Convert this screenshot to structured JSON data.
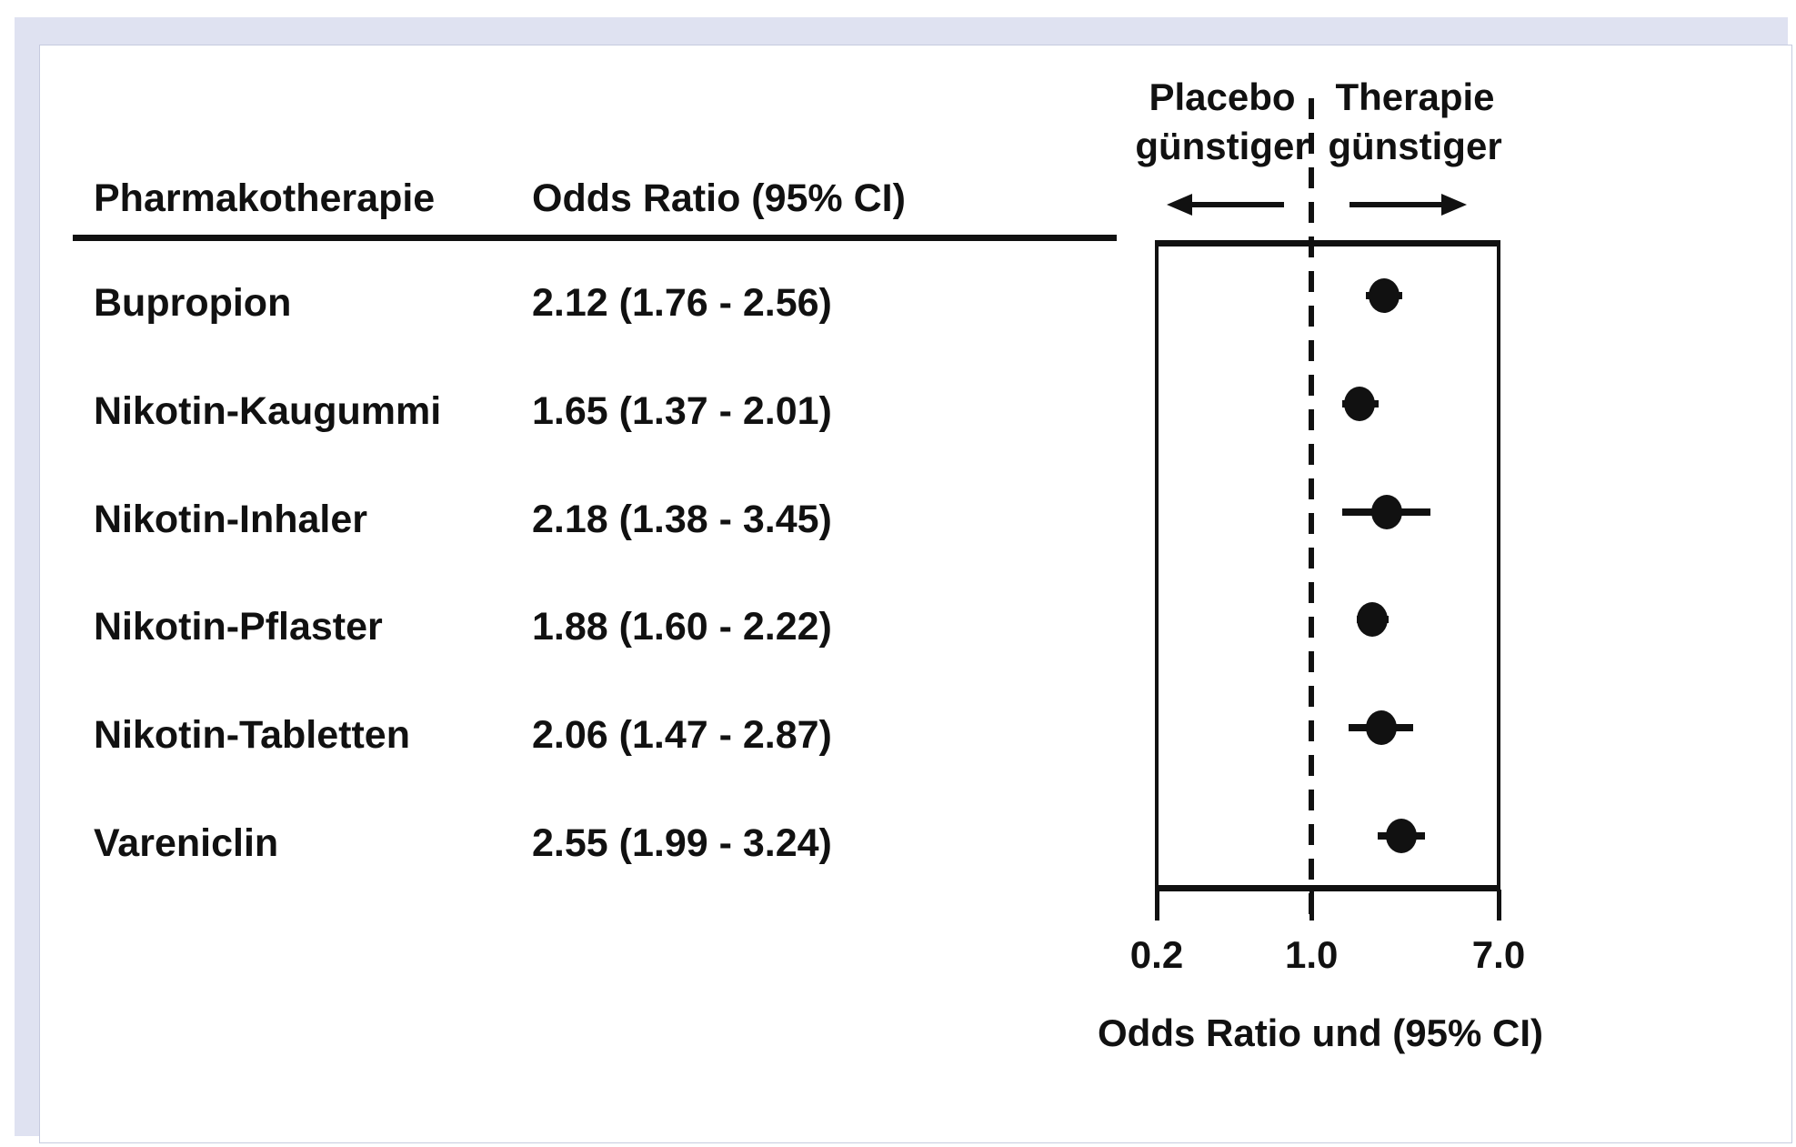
{
  "table": {
    "col1_header": "Pharmakotherapie",
    "col2_header": "Odds Ratio (95% CI)"
  },
  "plot": {
    "left_label": [
      "Placebo",
      "günstiger"
    ],
    "right_label": [
      "Therapie",
      "günstiger"
    ],
    "axis_label": "Odds Ratio und (95% CI)"
  },
  "chart_data": {
    "type": "scatter",
    "subtype": "forest-plot",
    "rows": [
      {
        "name": "Bupropion",
        "label": "2.12 (1.76 - 2.56)",
        "or": 2.12,
        "ci_low": 1.76,
        "ci_high": 2.56
      },
      {
        "name": "Nikotin-Kaugummi",
        "label": "1.65 (1.37 - 2.01)",
        "or": 1.65,
        "ci_low": 1.37,
        "ci_high": 2.01
      },
      {
        "name": "Nikotin-Inhaler",
        "label": "2.18 (1.38 - 3.45)",
        "or": 2.18,
        "ci_low": 1.38,
        "ci_high": 3.45
      },
      {
        "name": "Nikotin-Pflaster",
        "label": "1.88 (1.60 - 2.22)",
        "or": 1.88,
        "ci_low": 1.6,
        "ci_high": 2.22
      },
      {
        "name": "Nikotin-Tabletten",
        "label": "2.06 (1.47 - 2.87)",
        "or": 2.06,
        "ci_low": 1.47,
        "ci_high": 2.87
      },
      {
        "name": "Vareniclin",
        "label": "2.55 (1.99 - 3.24)",
        "or": 2.55,
        "ci_low": 1.99,
        "ci_high": 3.24
      }
    ],
    "x_axis": {
      "scale": "log",
      "min": 0.2,
      "max": 7.0,
      "ticks": [
        0.2,
        1.0,
        7.0
      ],
      "tick_labels": [
        "0.2",
        "1.0",
        "7.0"
      ],
      "reference_line": 1.0
    },
    "xlabel": "Odds Ratio und (95% CI)",
    "legend": "none",
    "grid": false
  },
  "colors": {
    "text": "#111111",
    "marker": "#111111",
    "frame": "#dfe2f1",
    "panel": "#ffffff"
  }
}
